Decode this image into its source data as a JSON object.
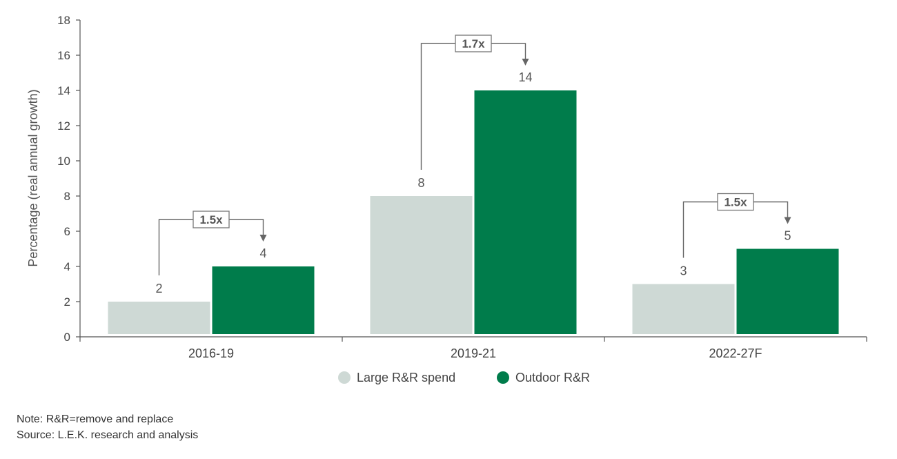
{
  "chart_data": {
    "type": "bar",
    "categories": [
      "2016-19",
      "2019-21",
      "2022-27F"
    ],
    "series": [
      {
        "name": "Large R&R spend",
        "values": [
          2,
          8,
          3
        ],
        "color": "#ced9d5"
      },
      {
        "name": "Outdoor R&R",
        "values": [
          4,
          14,
          5
        ],
        "color": "#007c4b"
      }
    ],
    "data_labels": [
      [
        "2",
        "8",
        "3"
      ],
      [
        "4",
        "14",
        "5"
      ]
    ],
    "ratio_labels": [
      "1.5x",
      "1.7x",
      "1.5x"
    ],
    "ylabel": "Percentage (real annual growth)",
    "xlabel": "",
    "ylim": [
      0,
      18
    ],
    "yticks": [
      "0",
      "2",
      "4",
      "6",
      "8",
      "10",
      "12",
      "14",
      "16",
      "18"
    ],
    "grid": false,
    "legend_position": "bottom-center"
  },
  "notes": {
    "note": "Note: R&R=remove and replace",
    "source": "Source: L.E.K. research and analysis"
  }
}
